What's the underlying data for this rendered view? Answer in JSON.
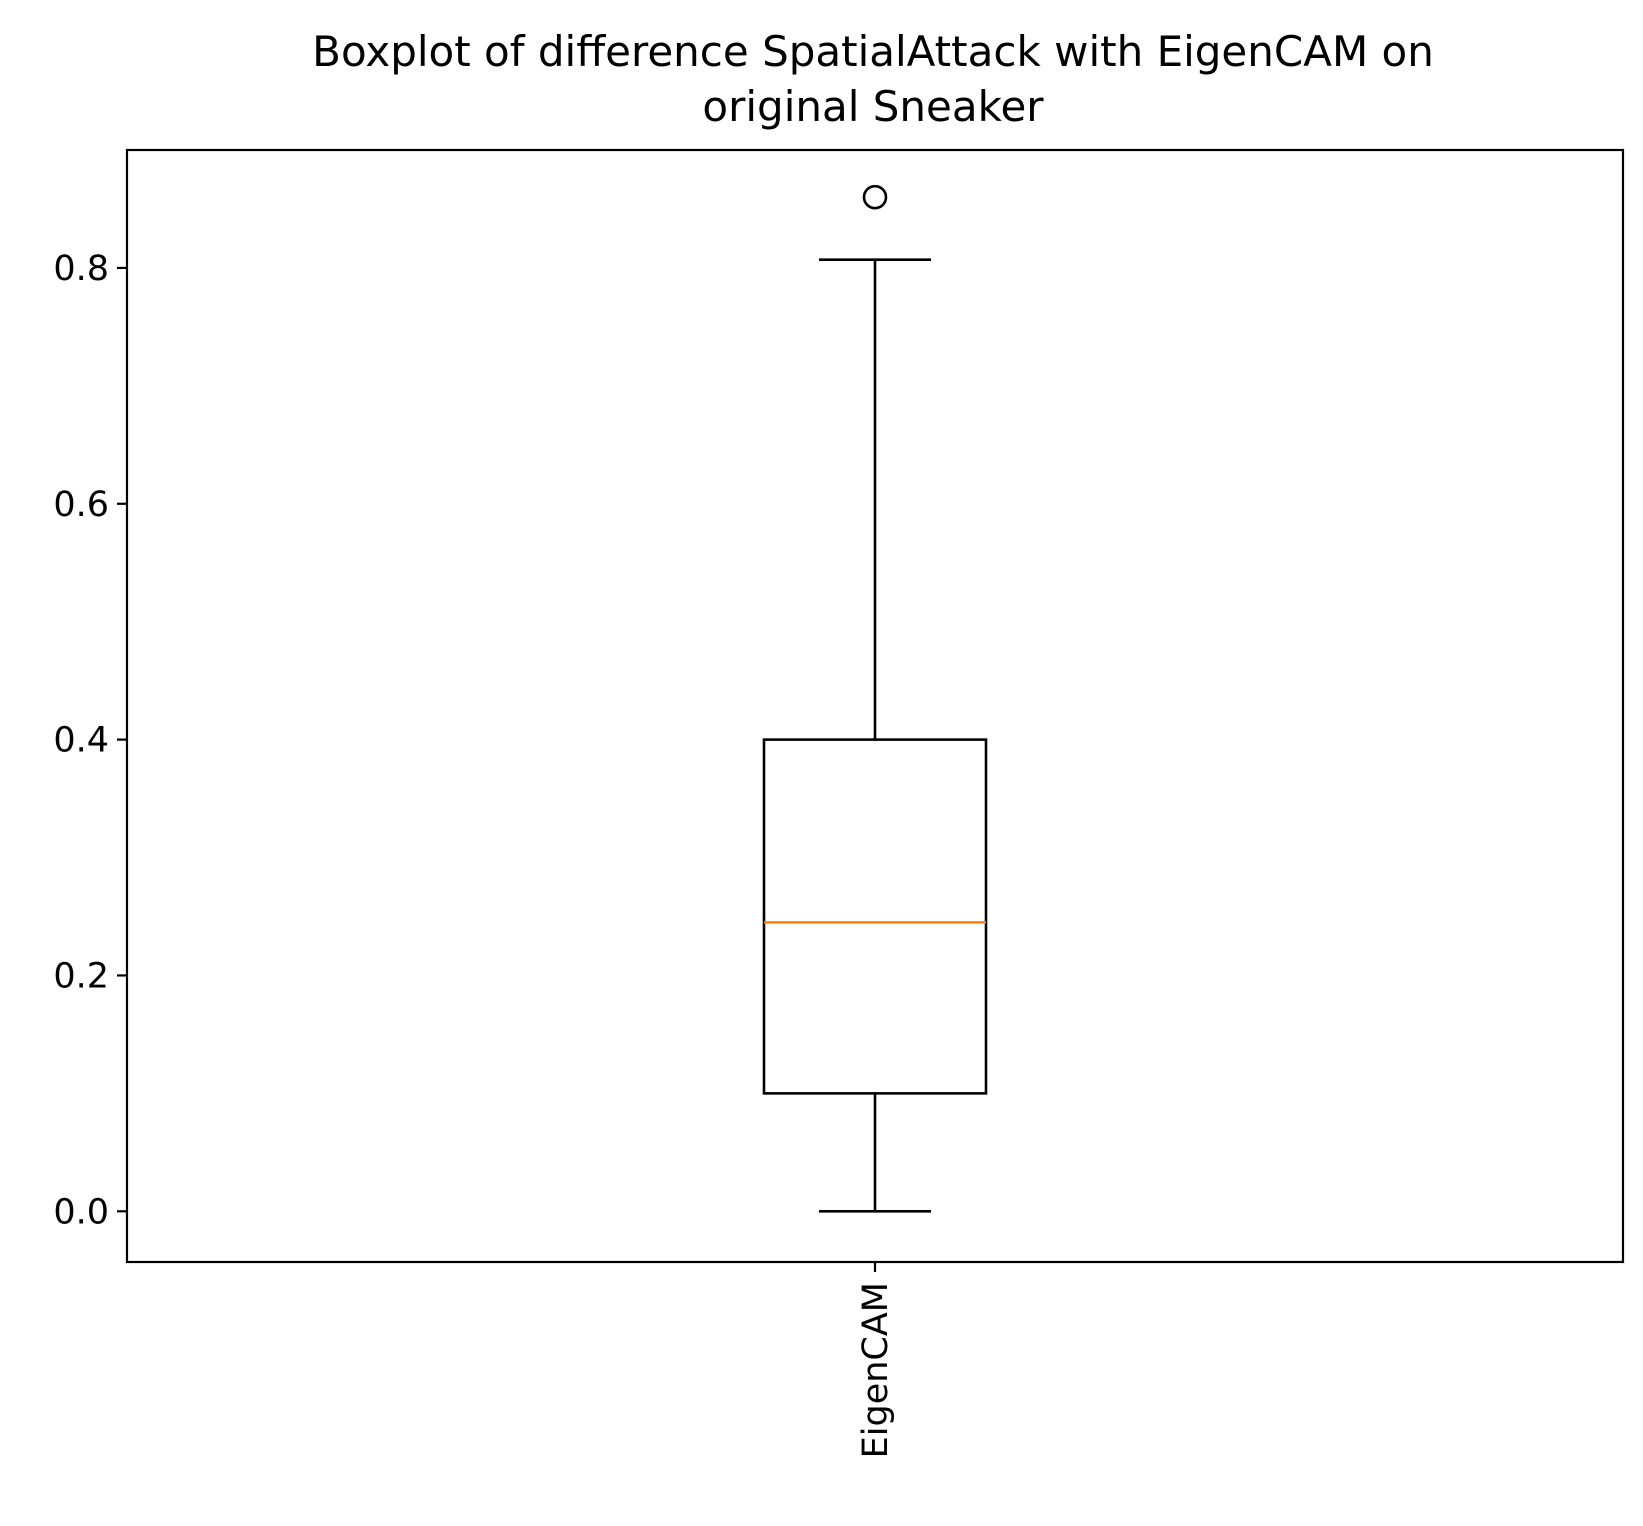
{
  "chart_data": {
    "type": "boxplot",
    "title_lines": [
      "Boxplot of difference SpatialAttack with EigenCAM on",
      "original Sneaker"
    ],
    "xlabel": "",
    "ylabel": "",
    "categories": [
      "EigenCAM"
    ],
    "boxes": [
      {
        "category": "EigenCAM",
        "whisker_low": 0.0,
        "q1": 0.1,
        "median": 0.245,
        "q3": 0.4,
        "whisker_high": 0.807,
        "outliers": [
          0.86
        ]
      }
    ],
    "ylim": [
      -0.043,
      0.9
    ],
    "yticks": [
      0.0,
      0.2,
      0.4,
      0.6,
      0.8
    ],
    "ytick_labels": [
      "0.0",
      "0.2",
      "0.4",
      "0.6",
      "0.8"
    ],
    "grid": false,
    "colors": {
      "box": "#000000",
      "median": "#ff7f0e",
      "axes": "#000000",
      "background": "#ffffff"
    }
  }
}
